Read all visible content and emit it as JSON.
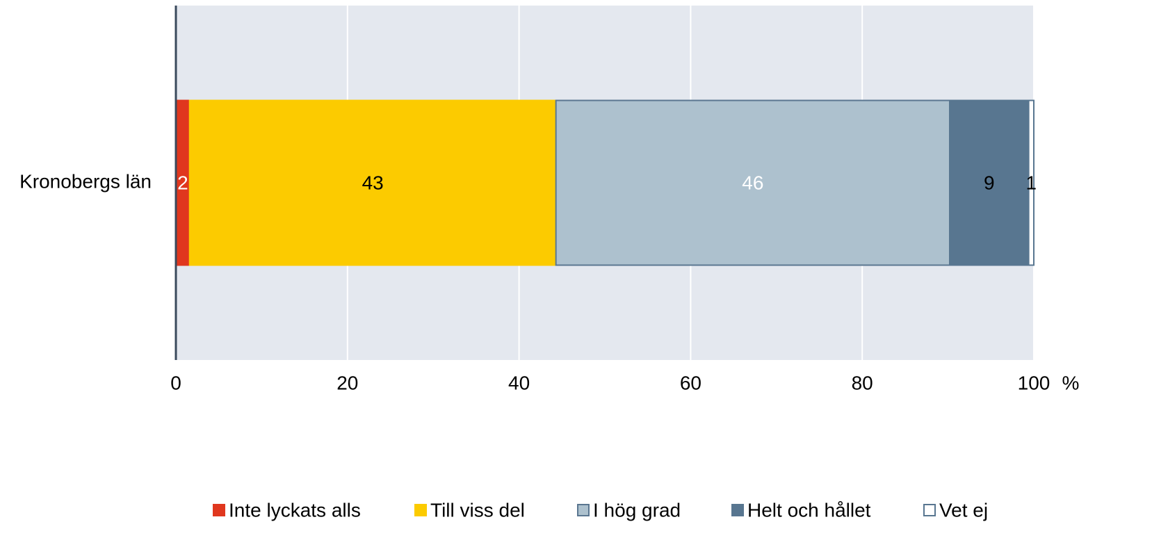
{
  "chart_data": {
    "type": "stacked_barh",
    "categories": [
      "Kronobergs län"
    ],
    "series": [
      {
        "name": "Inte lyckats alls",
        "color": "#e0371e",
        "stroke": "#e0371e",
        "label_color": "#ffffff",
        "values": [
          1.6
        ],
        "value_labels": [
          "2"
        ]
      },
      {
        "name": "Till viss del",
        "color": "#fccb00",
        "stroke": "#fccb00",
        "label_color": "#000000",
        "values": [
          42.7
        ],
        "value_labels": [
          "43"
        ]
      },
      {
        "name": "I hög grad",
        "color": "#adc1ce",
        "stroke": "#5a7690",
        "label_color": "#ffffff",
        "values": [
          45.9
        ],
        "value_labels": [
          "46"
        ]
      },
      {
        "name": "Helt och hållet",
        "color": "#587690",
        "stroke": "#587690",
        "label_color": "#000000",
        "values": [
          9.2
        ],
        "value_labels": [
          "9"
        ]
      },
      {
        "name": "Vet ej",
        "color": "#ffffff",
        "stroke": "#587690",
        "label_color": "#000000",
        "values": [
          0.6
        ],
        "value_labels": [
          "1"
        ]
      }
    ],
    "xlabel": "%",
    "xlim": [
      0,
      100
    ],
    "xticks": [
      0,
      20,
      40,
      60,
      80,
      100
    ],
    "grid": true,
    "legend": "bottom",
    "background": "#e4e8ef"
  }
}
